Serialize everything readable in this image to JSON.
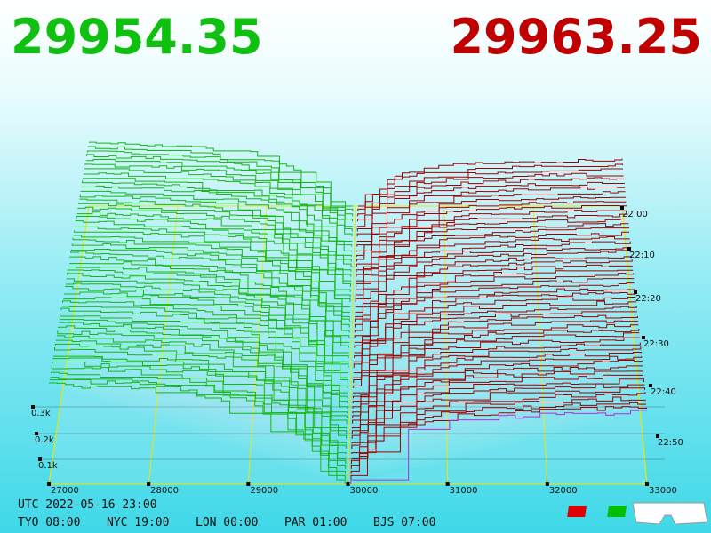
{
  "bid_price": "29954.35",
  "ask_price": "29963.25",
  "price_axis": [
    "27000",
    "28000",
    "29000",
    "30000",
    "31000",
    "32000",
    "33000"
  ],
  "depth_axis": [
    "0.3k",
    "0.2k",
    "0.1k"
  ],
  "time_axis": [
    "22:00",
    "22:10",
    "22:20",
    "22:30",
    "22:40",
    "22:50"
  ],
  "clock": {
    "utc": "UTC 2022-05-16 23:00",
    "zones": [
      "TYO 08:00",
      "NYC 19:00",
      "LON 00:00",
      "PAR 01:00",
      "BJS 07:00"
    ]
  }
}
